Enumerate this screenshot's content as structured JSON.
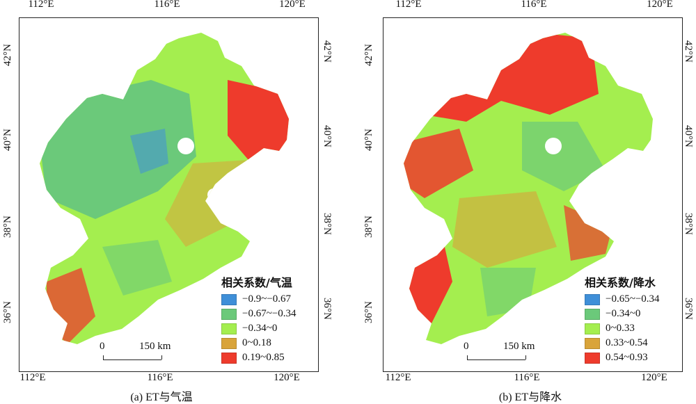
{
  "panels": [
    {
      "caption": "(a) ET与气温",
      "legend_title": "相关系数/气温",
      "legend": [
        {
          "label": "−0.9~−0.67",
          "color": "#3f8fd8"
        },
        {
          "label": "−0.67~−0.34",
          "color": "#6bc97a"
        },
        {
          "label": "−0.34~0",
          "color": "#a4ee4f"
        },
        {
          "label": "0~0.18",
          "color": "#d9a43a"
        },
        {
          "label": "0.19~0.85",
          "color": "#ee3b2c"
        }
      ],
      "scale": {
        "zero": "0",
        "dist": "150 km"
      },
      "lon_top": [
        "112°E",
        "116°E",
        "120°E"
      ],
      "lon_bottom": [
        "112°E",
        "116°E",
        "120°E"
      ],
      "lat_left": [
        "42°N",
        "40°N",
        "38°N",
        "36°N"
      ],
      "lat_right": [
        "42°N",
        "40°N",
        "38°N",
        "36°N"
      ]
    },
    {
      "caption": "(b) ET与降水",
      "legend_title": "相关系数/降水",
      "legend": [
        {
          "label": "−0.65~−0.34",
          "color": "#3f8fd8"
        },
        {
          "label": "−0.34~0",
          "color": "#6bc97a"
        },
        {
          "label": "0~0.33",
          "color": "#a4ee4f"
        },
        {
          "label": "0.33~0.54",
          "color": "#d9a43a"
        },
        {
          "label": "0.54~0.93",
          "color": "#ee3b2c"
        }
      ],
      "scale": {
        "zero": "0",
        "dist": "150 km"
      },
      "lon_top": [
        "112°E",
        "116°E",
        "120°E"
      ],
      "lon_bottom": [
        "112°E",
        "116°E",
        "120°E"
      ],
      "lat_left": [
        "42°N",
        "40°N",
        "38°N",
        "36°N"
      ],
      "lat_right": [
        "42°N",
        "40°N",
        "38°N",
        "36°N"
      ]
    }
  ]
}
